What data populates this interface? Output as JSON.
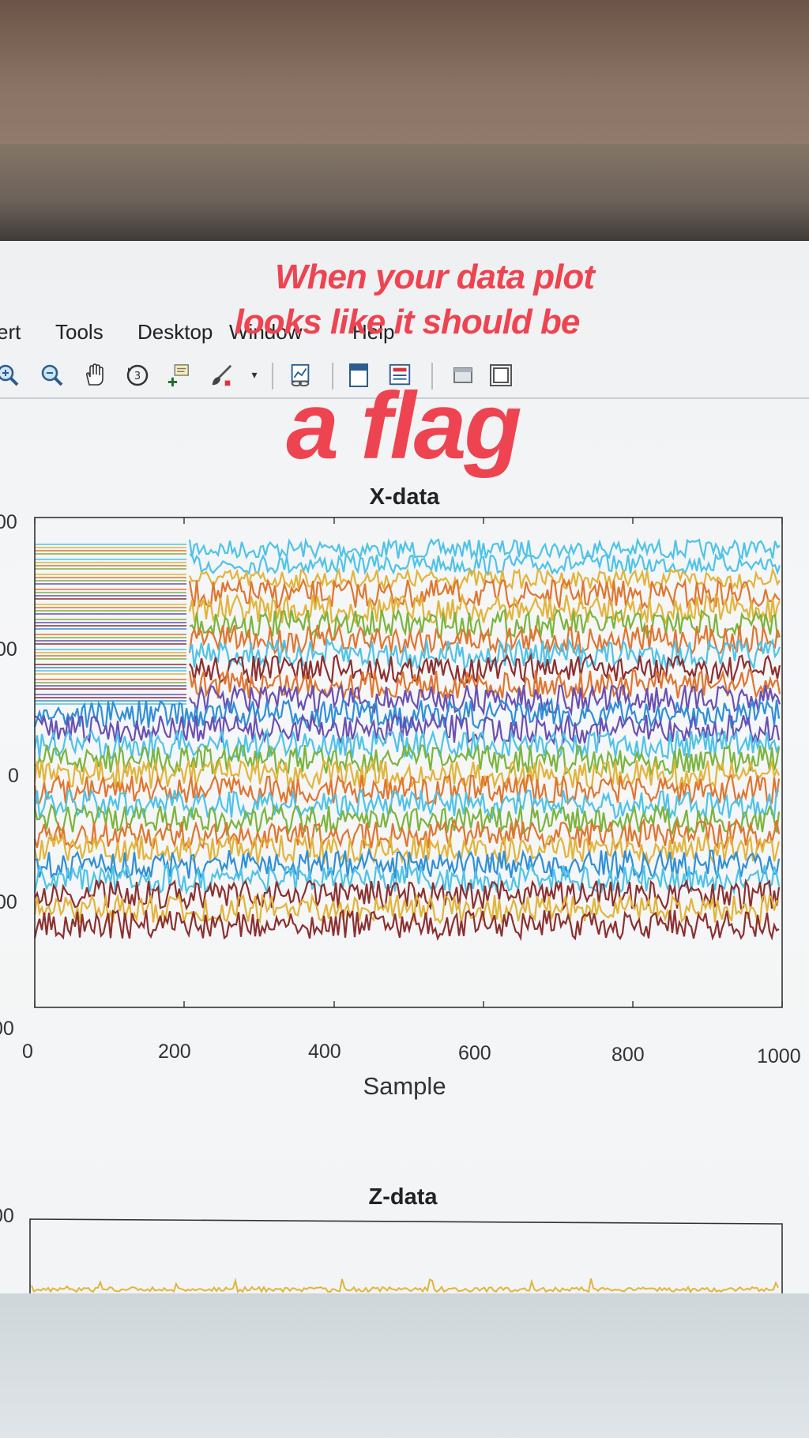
{
  "menubar": {
    "items": [
      "ert",
      "Tools",
      "Desktop",
      "Window",
      "Help"
    ]
  },
  "toolbar": {
    "icons": [
      "zoom-in-icon",
      "zoom-out-icon",
      "pan-hand-icon",
      "rotate-3d-icon",
      "data-cursor-icon",
      "brush-icon",
      "dropdown-arrow-icon",
      "link-plot-icon",
      "insert-colorbar-icon",
      "insert-legend-icon",
      "hide-plot-tools-icon",
      "show-plot-tools-icon"
    ]
  },
  "caption": {
    "line1": "When your data plot",
    "line2": "looks like it should be",
    "line3": "a flag"
  },
  "chart_data": [
    {
      "type": "line",
      "title": "X-data",
      "xlabel": "Sample",
      "ylabel": "",
      "xlim": [
        0,
        1000
      ],
      "xticks": [
        "0",
        "200",
        "400",
        "600",
        "800",
        "1000"
      ],
      "yticks": [
        "00",
        "00",
        "0",
        "00",
        "00"
      ],
      "grid": false,
      "series_colors": [
        "#4ec3e8",
        "#e2b43a",
        "#e0752f",
        "#7ab43c",
        "#6a4fb3",
        "#8c2f2f",
        "#2f8fd8"
      ]
    },
    {
      "type": "line",
      "title": "Z-data",
      "yticks": [
        "00"
      ],
      "series_colors": [
        "#e2b43a",
        "#8c2f2f",
        "#6a4fb3"
      ]
    }
  ],
  "colors": {
    "caption": "#ee4451",
    "toolbar_icon": "#2a5d8f"
  }
}
